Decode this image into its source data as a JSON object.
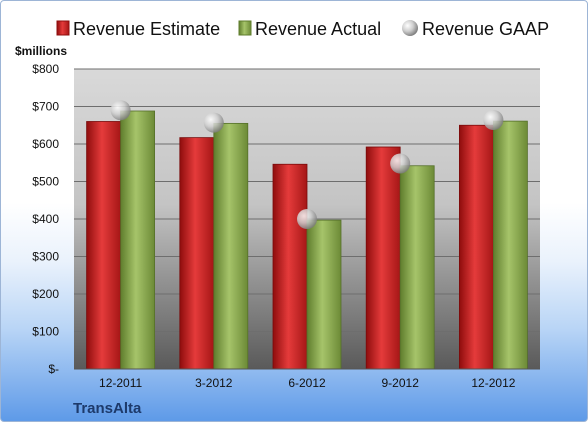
{
  "chart_data": {
    "type": "bar",
    "title": "",
    "unit_label": "$millions",
    "company": "TransAlta",
    "categories": [
      "12-2011",
      "3-2012",
      "6-2012",
      "9-2012",
      "12-2012"
    ],
    "series": [
      {
        "name": "Revenue Estimate",
        "kind": "bar",
        "color": "#d42a2a",
        "values": [
          660,
          617,
          546,
          592,
          650
        ]
      },
      {
        "name": "Revenue Actual",
        "kind": "bar",
        "color": "#8fae52",
        "values": [
          688,
          655,
          397,
          542,
          661
        ]
      },
      {
        "name": "Revenue GAAP",
        "kind": "marker",
        "color": "#c8c8c8",
        "values": [
          690,
          657,
          400,
          548,
          664
        ]
      }
    ],
    "ylim": [
      0,
      800
    ],
    "yticks": [
      0,
      100,
      200,
      300,
      400,
      500,
      600,
      700,
      800
    ],
    "ytick_labels": [
      "$-",
      "$100",
      "$200",
      "$300",
      "$400",
      "$500",
      "$600",
      "$700",
      "$800"
    ],
    "grid": true,
    "legend_position": "top"
  }
}
